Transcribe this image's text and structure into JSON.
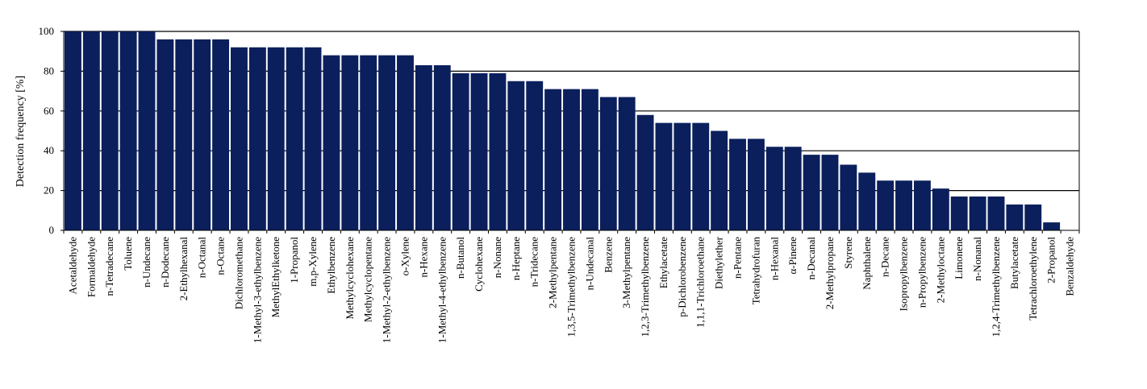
{
  "chart_data": {
    "type": "bar",
    "title": "",
    "xlabel": "",
    "ylabel": "Detection frequency [%]",
    "ylim": [
      0,
      100
    ],
    "yticks": [
      0,
      20,
      40,
      60,
      80,
      100
    ],
    "grid": true,
    "legend": "none",
    "bar_color": "#0b1f5c",
    "categories": [
      "Acetaldehyde",
      "Formaldehyde",
      "n-Tetradecane",
      "Toluene",
      "n-Undecane",
      "n-Dodecane",
      "2-Ethylhexanal",
      "n-Octanal",
      "n-Octane",
      "Dichloromethane",
      "1-Methyl-3-ethylbenzene",
      "MethylEthylketone",
      "1-Propanol",
      "m,p-Xylene",
      "Ethylbenzene",
      "Methylcyclohexane",
      "Methylcyclopentane",
      "1-Methyl-2-ethylbenzene",
      "o-Xylene",
      "n-Hexane",
      "1-Methyl-4-ethylbenzene",
      "n-Butanol",
      "Cyclohexane",
      "n-Nonane",
      "n-Heptane",
      "n-Tridecane",
      "2-Methylpentane",
      "1,3,5-Trimethylbenzene",
      "n-Undecanal",
      "Benzene",
      "3-Methylpentane",
      "1,2,3-Trimethylbenzene",
      "Ethylacetate",
      "p-Dichlorobenzene",
      "1,1,1-Trichloroethane",
      "Diethylether",
      "n-Pentane",
      "Tetrahydrofuran",
      "n-Hexanal",
      "α-Pinene",
      "n-Decanal",
      "2-Methylpropane",
      "Styrene",
      "Naphthalene",
      "n-Decane",
      "Isopropylbenzene",
      "n-Propylbenzene",
      "2-Methyloctane",
      "Limonene",
      "n-Nonanal",
      "1,2,4-Trimethylbenzene",
      "Butylacetate",
      "Tetrachloroethylene",
      "2-Propanol",
      "Benzaldehyde"
    ],
    "values": [
      100,
      100,
      100,
      100,
      100,
      96,
      96,
      96,
      96,
      92,
      92,
      92,
      92,
      92,
      88,
      88,
      88,
      88,
      88,
      83,
      83,
      79,
      79,
      79,
      75,
      75,
      71,
      71,
      71,
      67,
      67,
      58,
      54,
      54,
      54,
      50,
      46,
      46,
      42,
      42,
      38,
      38,
      33,
      29,
      25,
      25,
      25,
      21,
      17,
      17,
      17,
      13,
      13,
      4,
      0
    ]
  }
}
